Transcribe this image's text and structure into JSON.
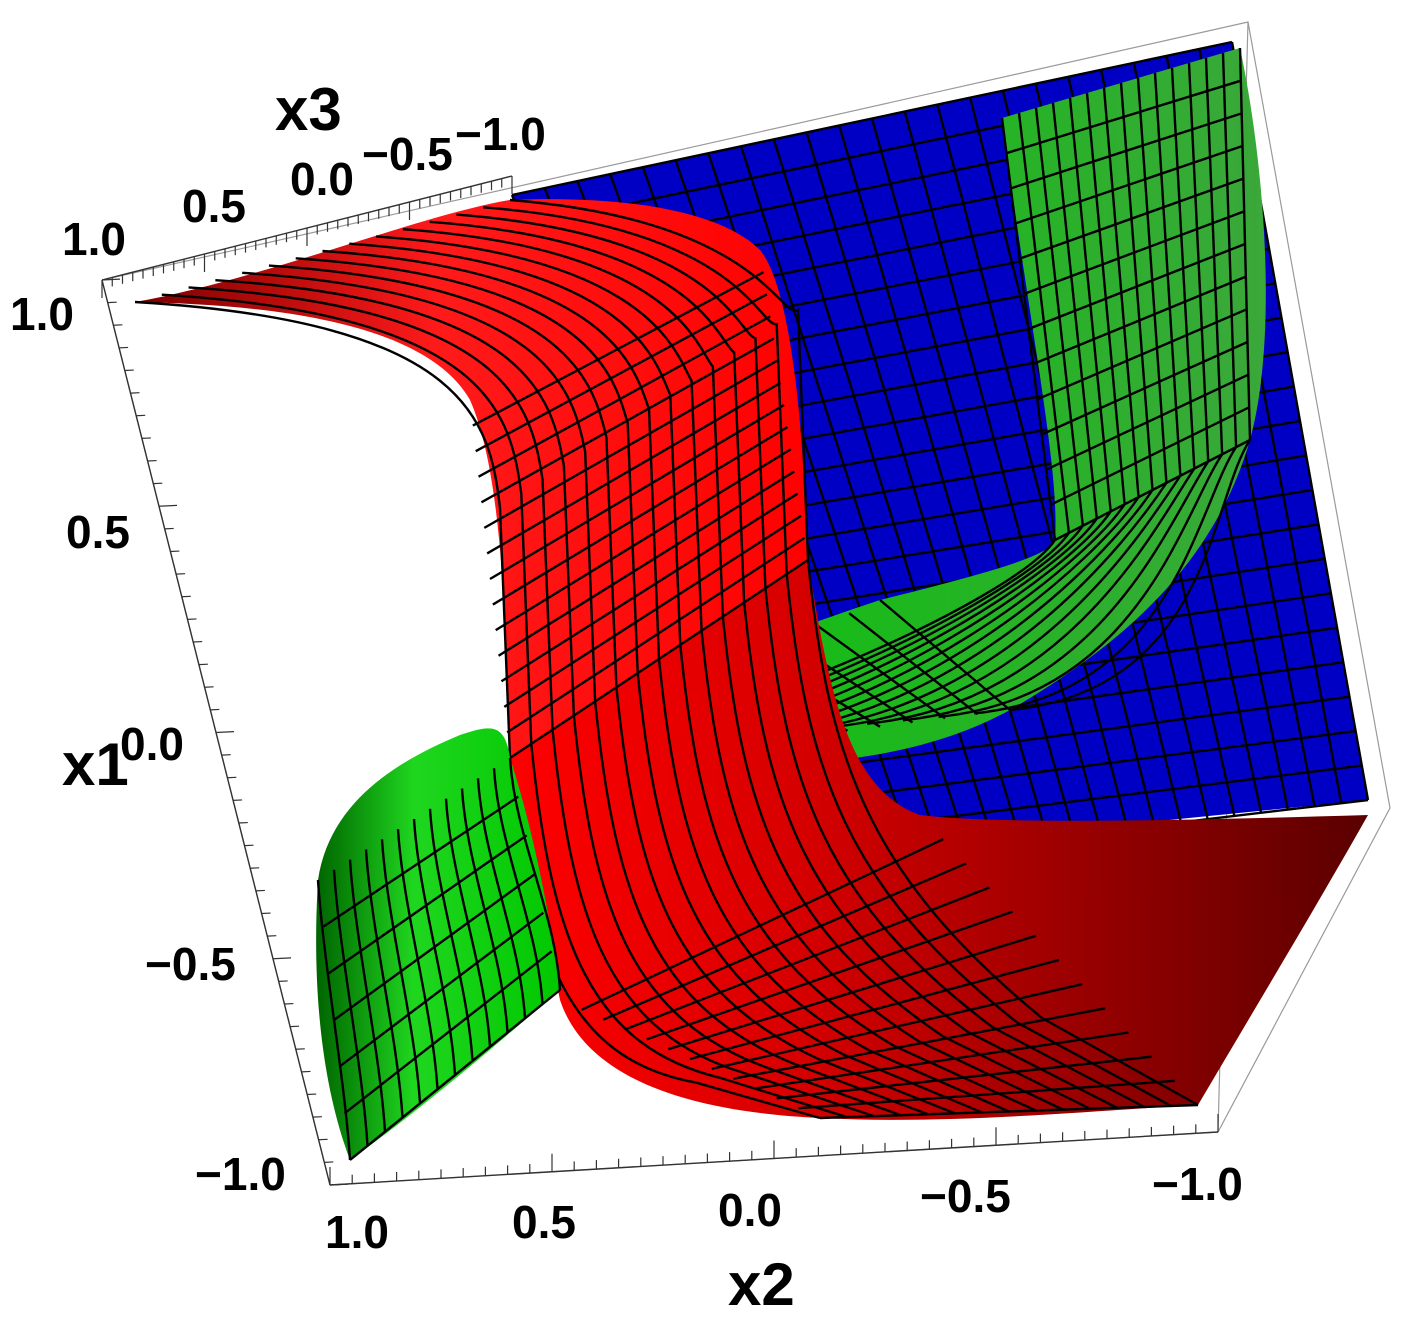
{
  "chart_data": {
    "type": "surface3d",
    "title": "",
    "axes": {
      "x1": {
        "label": "x1",
        "range": [
          -1.0,
          1.0
        ],
        "ticks": [
          "1.0",
          "0.5",
          "0.0",
          "-0.5",
          "-1.0"
        ]
      },
      "x2": {
        "label": "x2",
        "range": [
          -1.0,
          1.0
        ],
        "ticks": [
          "1.0",
          "0.5",
          "0.0",
          "-0.5",
          "-1.0"
        ]
      },
      "x3": {
        "label": "x3",
        "range": [
          -1.0,
          1.0
        ],
        "ticks": [
          "1.0",
          "0.5",
          "0.0",
          "-0.5",
          "-1.0"
        ]
      }
    },
    "surfaces": [
      {
        "color": "#0000c8",
        "description_key": "blue"
      },
      {
        "color": "#ff0000",
        "description_key": "red"
      },
      {
        "color": "#00c800",
        "description_key": "green"
      }
    ],
    "box": true,
    "mesh": true
  },
  "labels": {
    "x1_title": "x1",
    "x2_title": "x2",
    "x3_title": "x3",
    "x1_ticks": [
      "1.0",
      "0.5",
      "0.0",
      "−0.5",
      "−1.0"
    ],
    "x2_ticks": [
      "1.0",
      "0.5",
      "0.0",
      "−0.5",
      "−1.0"
    ],
    "x3_ticks": [
      "1.0",
      "0.5",
      "0.0",
      "−0.5",
      "−1.0"
    ]
  }
}
